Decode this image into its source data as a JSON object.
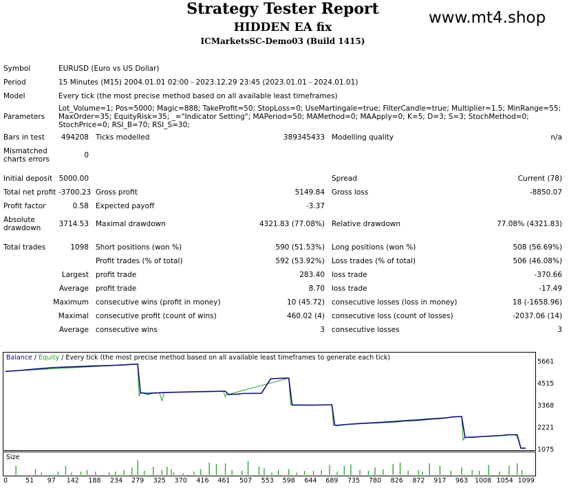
{
  "header": {
    "title": "Strategy Tester Report",
    "ea_name": "HIDDEN EA fix",
    "server": "ICMarketsSC-Demo03 (Build 1415)",
    "watermark": "www.mt4.shop"
  },
  "settings": {
    "symbol_label": "Symbol",
    "symbol_value": "EURUSD (Euro vs US Dollar)",
    "period_label": "Period",
    "period_value": "15 Minutes (M15) 2004.01.01 02:00 - 2023.12.29 23:45 (2023.01.01 - 2024.01.01)",
    "model_label": "Model",
    "model_value": "Every tick (the most precise method based on all available least timeframes)",
    "parameters_label": "Parameters",
    "parameters_value": "Lot_Volume=1; Pos=5000; Magic=888; TakeProfit=50; StopLoss=0; UseMartingale=true; FilterCandle=true; Multiplier=1.5; MinRange=55; MaxOrder=35; EquityRisk=35; _=\"Indicator Setting\"; MAPeriod=50; MAMethod=0; MAApply=0; K=5; D=3; S=3; StochMethod=0; StochPrice=0; RSI_B=70; RSI_S=30;"
  },
  "stats": {
    "bars_label": "Bars in test",
    "bars_value": "494208",
    "ticks_label": "Ticks modelled",
    "ticks_value": "389345433",
    "quality_label": "Modelling quality",
    "quality_value": "n/a",
    "mismatch_label": "Mismatched charts errors",
    "mismatch_value": "0",
    "deposit_label": "Initial deposit",
    "deposit_value": "5000.00",
    "spread_label": "Spread",
    "spread_value": "Current (78)",
    "net_label": "Total net profit",
    "net_value": "-3700.23",
    "gross_profit_label": "Gross profit",
    "gross_profit_value": "5149.84",
    "gross_loss_label": "Gross loss",
    "gross_loss_value": "-8850.07",
    "pf_label": "Profit factor",
    "pf_value": "0.58",
    "payoff_label": "Expected payoff",
    "payoff_value": "-3.37",
    "absdd_label": "Absolute drawdown",
    "absdd_value": "3714.53",
    "maxdd_label": "Maximal drawdown",
    "maxdd_value": "4321.83 (77.08%)",
    "reldd_label": "Relative drawdown",
    "reldd_value": "77.08% (4321.83)",
    "trades_label": "Total trades",
    "trades_value": "1098",
    "short_label": "Short positions (won %)",
    "short_value": "590 (51.53%)",
    "long_label": "Long positions (won %)",
    "long_value": "508 (56.69%)",
    "ptrades_label": "Profit trades (% of total)",
    "ptrades_value": "592 (53.92%)",
    "ltrades_label": "Loss trades (% of total)",
    "ltrades_value": "506 (46.08%)",
    "largest_label": "Largest",
    "largest_profit_label": "profit trade",
    "largest_profit_value": "283.40",
    "largest_loss_label": "loss trade",
    "largest_loss_value": "-370.66",
    "average_label": "Average",
    "average_profit_label": "profit trade",
    "average_profit_value": "8.70",
    "average_loss_label": "loss trade",
    "average_loss_value": "-17.49",
    "maximum_label": "Maximum",
    "max_cwins_label": "consecutive wins (profit in money)",
    "max_cwins_value": "10 (45.72)",
    "max_closs_label": "consecutive losses (loss in money)",
    "max_closs_value": "18 (-1658.96)",
    "maximal_label": "Maximal",
    "maximal_cprofit_label": "consecutive profit (count of wins)",
    "maximal_cprofit_value": "460.02 (4)",
    "maximal_closs_label": "consecutive loss (count of losses)",
    "maximal_closs_value": "-2037.06 (14)",
    "avg2_label": "Average",
    "avg_cwins_label": "consecutive wins",
    "avg_cwins_value": "3",
    "avg_closs_label": "consecutive losses",
    "avg_closs_value": "3"
  },
  "chart_legend": {
    "balance": "Balance",
    "sep": " / ",
    "equity": "Equity",
    "rest": " / Every tick (the most precise method based on all available least timeframes to generate each tick)",
    "size_label": "Size"
  },
  "colors": {
    "balance": "#0b0b80",
    "equity": "#22a022",
    "size": "#22a022"
  },
  "chart_data": {
    "type": "line",
    "xlabel": "",
    "ylabel": "",
    "y_ticks": [
      5661,
      4515,
      3368,
      2221,
      1075
    ],
    "ylim": [
      1075,
      5661
    ],
    "x_ticks": [
      0,
      51,
      97,
      142,
      188,
      234,
      279,
      325,
      370,
      416,
      461,
      507,
      553,
      598,
      644,
      689,
      735,
      780,
      826,
      872,
      917,
      963,
      1008,
      1054,
      1099
    ],
    "xlim": [
      0,
      1098
    ],
    "grid": false,
    "series": [
      {
        "name": "Balance",
        "x": [
          0,
          30,
          60,
          100,
          140,
          160,
          180,
          200,
          230,
          250,
          275,
          279,
          285,
          290,
          300,
          310,
          325,
          350,
          380,
          420,
          460,
          464,
          470,
          490,
          500,
          540,
          560,
          590,
          598,
          605,
          620,
          650,
          680,
          689,
          695,
          700,
          720,
          740,
          760,
          780,
          800,
          826,
          840,
          860,
          880,
          900,
          917,
          930,
          945,
          960,
          963,
          970,
          990,
          1010,
          1030,
          1050,
          1060,
          1075,
          1080,
          1088,
          1098
        ],
        "values": [
          5180,
          5230,
          5300,
          5380,
          5420,
          5440,
          5460,
          5475,
          5500,
          5520,
          5560,
          5560,
          4060,
          4060,
          4000,
          4050,
          4070,
          4090,
          4110,
          4130,
          4150,
          4150,
          3980,
          4000,
          4030,
          4040,
          4800,
          4830,
          4830,
          3430,
          3430,
          3420,
          3440,
          3440,
          2380,
          2360,
          2420,
          2450,
          2480,
          2500,
          2530,
          2560,
          2600,
          2620,
          2660,
          2700,
          2730,
          2760,
          2810,
          2830,
          2830,
          1740,
          1760,
          1790,
          1820,
          1850,
          1880,
          1880,
          1880,
          1180,
          1180
        ]
      },
      {
        "name": "Equity",
        "x": [
          0,
          279,
          282,
          285,
          325,
          330,
          335,
          460,
          464,
          467,
          470,
          598,
          602,
          605,
          689,
          692,
          695,
          963,
          966,
          970,
          1075,
          1080,
          1085,
          1088,
          1098
        ],
        "values": [
          5180,
          5560,
          3900,
          4060,
          4070,
          3650,
          4080,
          4150,
          3870,
          3980,
          3980,
          4830,
          3450,
          3430,
          3440,
          2380,
          2380,
          2830,
          1610,
          1740,
          1880,
          1800,
          1400,
          1180,
          1180
        ]
      }
    ],
    "size": {
      "x": [
        22,
        63,
        76,
        111,
        127,
        139,
        159,
        172,
        190,
        219,
        232,
        250,
        267,
        279,
        293,
        312,
        330,
        341,
        350,
        355,
        375,
        398,
        412,
        430,
        445,
        464,
        478,
        499,
        512,
        535,
        546,
        562,
        576,
        598,
        615,
        631,
        650,
        667,
        684,
        700,
        715,
        729,
        748,
        766,
        780,
        797,
        818,
        833,
        850,
        872,
        880,
        895,
        917,
        940,
        963,
        985,
        1000,
        1020,
        1043,
        1063,
        1080,
        1090
      ],
      "values": [
        0.55,
        0.35,
        0.15,
        0.2,
        0.55,
        0.15,
        0.2,
        0.3,
        0.2,
        0.15,
        0.2,
        0.3,
        0.45,
        0.9,
        0.25,
        0.5,
        0.3,
        0.5,
        0.35,
        0.15,
        0.1,
        0.2,
        0.35,
        0.75,
        0.65,
        0.7,
        0.3,
        0.25,
        0.85,
        0.5,
        0.4,
        0.15,
        0.3,
        0.35,
        0.15,
        0.25,
        0.25,
        0.3,
        0.6,
        0.2,
        0.55,
        0.65,
        0.3,
        0.25,
        0.45,
        0.35,
        0.65,
        0.75,
        0.25,
        0.3,
        0.2,
        0.7,
        0.55,
        0.25,
        0.45,
        0.3,
        0.25,
        0.6,
        0.2,
        0.55,
        0.7,
        0.3
      ]
    }
  }
}
